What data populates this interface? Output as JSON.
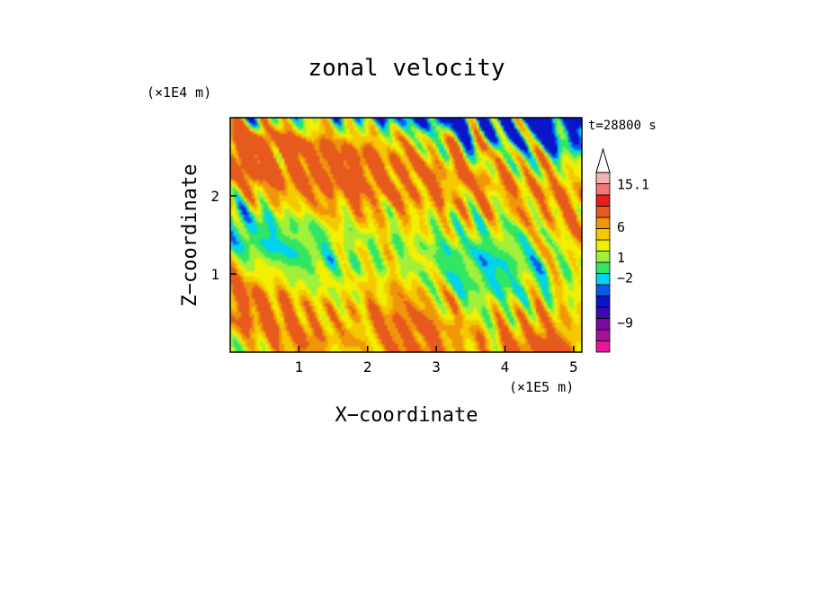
{
  "chart_data": {
    "type": "heatmap",
    "title": "zonal velocity",
    "xlabel": "X−coordinate",
    "ylabel": "Z−coordinate",
    "x_unit": "(×1E5 m)",
    "y_unit": "(×1E4 m)",
    "time_label": "t=28800 s",
    "x_range": [
      0,
      5.12
    ],
    "y_range": [
      0,
      3.0
    ],
    "x_ticks": [
      1,
      2,
      3,
      4,
      5
    ],
    "y_ticks": [
      1,
      2
    ],
    "x_tick_labels": [
      "1",
      "2",
      "3",
      "4",
      "5"
    ],
    "y_tick_labels": [
      "1",
      "2"
    ],
    "colorbar": {
      "levels_bottom_to_top": [
        {
          "color": "#e8189c"
        },
        {
          "color": "#a8109c"
        },
        {
          "color": "#7a0aa0"
        },
        {
          "color": "#3c08b4"
        },
        {
          "color": "#0a14c8"
        },
        {
          "color": "#0a5ae6"
        },
        {
          "color": "#00d2f0"
        },
        {
          "color": "#32e664"
        },
        {
          "color": "#a0f03c"
        },
        {
          "color": "#f0f000"
        },
        {
          "color": "#f5c800"
        },
        {
          "color": "#f0960a"
        },
        {
          "color": "#e65a1e"
        },
        {
          "color": "#e61e1e"
        },
        {
          "color": "#f07878"
        },
        {
          "color": "#f5b4b4"
        }
      ],
      "labels": [
        {
          "text": "15.1",
          "value": 15.1
        },
        {
          "text": "6",
          "value": 6
        },
        {
          "text": "1",
          "value": 1
        },
        {
          "text": "−2",
          "value": -2
        },
        {
          "text": "−9",
          "value": -9
        }
      ]
    },
    "field_description_colors": {
      "dominant": [
        "#f5c800",
        "#32e664",
        "#f0f000",
        "#f0960a",
        "#00d2f0"
      ],
      "minimum": "#0a14c8",
      "maximum": "#e65a1e"
    }
  }
}
